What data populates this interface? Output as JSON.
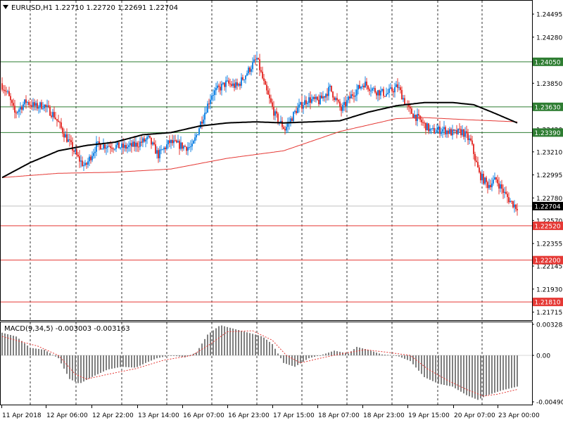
{
  "header": {
    "symbol": "EURUSD,H1",
    "ohlc": "1.22710 1.22720 1.22691 1.22704",
    "menu_icon": "triangle-down-icon"
  },
  "macd_header": {
    "label": "MACD(9,34,5) -0.003003 -0.003163"
  },
  "chart_data": [
    {
      "type": "candlestick",
      "title": "EURUSD,H1 1.22710 1.22720 1.22691 1.22704",
      "price_ticks": [
        "1.24495",
        "1.24280",
        "1.23850",
        "1.23635",
        "1.23420",
        "1.23210",
        "1.22995",
        "1.22780",
        "1.22570",
        "1.22355",
        "1.22145",
        "1.21930",
        "1.21715"
      ],
      "price_tick_values": [
        1.24495,
        1.2428,
        1.2385,
        1.23635,
        1.2342,
        1.2321,
        1.22995,
        1.2278,
        1.2257,
        1.22355,
        1.22145,
        1.2193,
        1.21715
      ],
      "ylim": [
        1.2164,
        1.2462
      ],
      "current_price": {
        "label": "1.22704",
        "value": 1.22704
      },
      "levels": [
        {
          "label": "1.24050",
          "value": 1.2405,
          "color": "#2e7d32"
        },
        {
          "label": "1.23630",
          "value": 1.2363,
          "color": "#2e7d32"
        },
        {
          "label": "1.23390",
          "value": 1.2339,
          "color": "#2e7d32"
        },
        {
          "label": "1.22520",
          "value": 1.2252,
          "color": "#e53935"
        },
        {
          "label": "1.22200",
          "value": 1.222,
          "color": "#e53935"
        },
        {
          "label": "1.21810",
          "value": 1.2181,
          "color": "#e53935"
        }
      ],
      "x_labels": [
        "11 Apr 2018",
        "12 Apr 06:00",
        "12 Apr 22:00",
        "13 Apr 14:00",
        "16 Apr 07:00",
        "16 Apr 23:00",
        "17 Apr 15:00",
        "18 Apr 07:00",
        "18 Apr 23:00",
        "19 Apr 15:00",
        "20 Apr 07:00",
        "23 Apr 00:00"
      ],
      "grid": "dashed vertical lines",
      "colors": {
        "bull": "#1e88e5",
        "bear": "#e53935",
        "ma_fast": "#000000",
        "ma_slow": "#e53935"
      },
      "price_anchors": [
        [
          0,
          1.2385
        ],
        [
          5,
          1.2375
        ],
        [
          10,
          1.2357
        ],
        [
          18,
          1.2368
        ],
        [
          25,
          1.2363
        ],
        [
          30,
          1.2365
        ],
        [
          38,
          1.2355
        ],
        [
          45,
          1.2338
        ],
        [
          55,
          1.2315
        ],
        [
          60,
          1.2307
        ],
        [
          68,
          1.2327
        ],
        [
          78,
          1.2327
        ],
        [
          88,
          1.2325
        ],
        [
          95,
          1.2327
        ],
        [
          105,
          1.2333
        ],
        [
          112,
          1.2318
        ],
        [
          120,
          1.233
        ],
        [
          130,
          1.2326
        ],
        [
          136,
          1.2325
        ],
        [
          142,
          1.2348
        ],
        [
          150,
          1.2375
        ],
        [
          160,
          1.2385
        ],
        [
          168,
          1.2382
        ],
        [
          175,
          1.2395
        ],
        [
          182,
          1.2408
        ],
        [
          188,
          1.238
        ],
        [
          195,
          1.2355
        ],
        [
          202,
          1.2342
        ],
        [
          210,
          1.236
        ],
        [
          218,
          1.237
        ],
        [
          226,
          1.2368
        ],
        [
          234,
          1.238
        ],
        [
          242,
          1.236
        ],
        [
          250,
          1.2375
        ],
        [
          258,
          1.2385
        ],
        [
          266,
          1.2378
        ],
        [
          274,
          1.2375
        ],
        [
          282,
          1.2382
        ],
        [
          290,
          1.236
        ],
        [
          298,
          1.235
        ],
        [
          306,
          1.234
        ],
        [
          314,
          1.2342
        ],
        [
          322,
          1.2338
        ],
        [
          328,
          1.234
        ],
        [
          334,
          1.233
        ],
        [
          340,
          1.23
        ],
        [
          346,
          1.229
        ],
        [
          352,
          1.2295
        ],
        [
          358,
          1.2282
        ],
        [
          362,
          1.2275
        ],
        [
          366,
          1.227
        ]
      ],
      "ma_fast_anchors": [
        [
          0,
          1.2297
        ],
        [
          20,
          1.2311
        ],
        [
          40,
          1.2322
        ],
        [
          60,
          1.2327
        ],
        [
          80,
          1.233
        ],
        [
          100,
          1.2337
        ],
        [
          120,
          1.2339
        ],
        [
          140,
          1.2345
        ],
        [
          160,
          1.2348
        ],
        [
          180,
          1.2349
        ],
        [
          200,
          1.2348
        ],
        [
          220,
          1.2349
        ],
        [
          240,
          1.235
        ],
        [
          260,
          1.2358
        ],
        [
          280,
          1.2364
        ],
        [
          300,
          1.2367
        ],
        [
          320,
          1.2367
        ],
        [
          335,
          1.2365
        ],
        [
          350,
          1.2357
        ],
        [
          366,
          1.2348
        ]
      ],
      "ma_slow_anchors": [
        [
          0,
          1.2297
        ],
        [
          40,
          1.2301
        ],
        [
          80,
          1.2302
        ],
        [
          120,
          1.2305
        ],
        [
          160,
          1.2315
        ],
        [
          200,
          1.2322
        ],
        [
          240,
          1.234
        ],
        [
          280,
          1.2352
        ],
        [
          300,
          1.2353
        ],
        [
          330,
          1.2351
        ],
        [
          366,
          1.2349
        ]
      ]
    },
    {
      "type": "bar",
      "title": "MACD(9,34,5) -0.003003 -0.003163",
      "y_ticks": [
        "0.003284",
        "0.00",
        "-0.004907"
      ],
      "y_tick_values": [
        0.003284,
        0,
        -0.004907
      ],
      "ylim": [
        -0.0052,
        0.0035
      ],
      "macd_anchors": [
        [
          0,
          0.0024
        ],
        [
          10,
          0.002
        ],
        [
          20,
          0.0008
        ],
        [
          30,
          0.0006
        ],
        [
          40,
          -0.0003
        ],
        [
          48,
          -0.0025
        ],
        [
          55,
          -0.003
        ],
        [
          65,
          -0.0022
        ],
        [
          75,
          -0.0015
        ],
        [
          85,
          -0.0012
        ],
        [
          95,
          -0.0013
        ],
        [
          102,
          -0.0008
        ],
        [
          110,
          -0.0003
        ],
        [
          120,
          0.0
        ],
        [
          130,
          -0.0002
        ],
        [
          138,
          0.0003
        ],
        [
          146,
          0.0022
        ],
        [
          155,
          0.0032
        ],
        [
          165,
          0.0028
        ],
        [
          175,
          0.0024
        ],
        [
          185,
          0.002
        ],
        [
          192,
          0.0012
        ],
        [
          200,
          -0.0008
        ],
        [
          208,
          -0.0012
        ],
        [
          218,
          -0.0003
        ],
        [
          226,
          0.0
        ],
        [
          236,
          0.0005
        ],
        [
          246,
          0.0002
        ],
        [
          252,
          0.0009
        ],
        [
          260,
          0.0006
        ],
        [
          270,
          0.0001
        ],
        [
          280,
          0.0
        ],
        [
          290,
          -0.0006
        ],
        [
          300,
          -0.0023
        ],
        [
          310,
          -0.003
        ],
        [
          320,
          -0.0033
        ],
        [
          330,
          -0.0042
        ],
        [
          338,
          -0.0047
        ],
        [
          345,
          -0.0042
        ],
        [
          355,
          -0.0037
        ],
        [
          366,
          -0.0033
        ]
      ],
      "signal_anchors": [
        [
          0,
          0.002
        ],
        [
          12,
          0.0015
        ],
        [
          25,
          0.001
        ],
        [
          40,
          0.0
        ],
        [
          52,
          -0.002
        ],
        [
          60,
          -0.0025
        ],
        [
          75,
          -0.002
        ],
        [
          95,
          -0.0014
        ],
        [
          115,
          -0.0005
        ],
        [
          135,
          0.0
        ],
        [
          148,
          0.0012
        ],
        [
          160,
          0.0025
        ],
        [
          178,
          0.0026
        ],
        [
          192,
          0.0016
        ],
        [
          202,
          0.0
        ],
        [
          212,
          -0.0008
        ],
        [
          226,
          -0.0003
        ],
        [
          242,
          0.0002
        ],
        [
          258,
          0.0006
        ],
        [
          275,
          0.0003
        ],
        [
          290,
          0.0
        ],
        [
          302,
          -0.0014
        ],
        [
          316,
          -0.0026
        ],
        [
          330,
          -0.0036
        ],
        [
          342,
          -0.0043
        ],
        [
          352,
          -0.0041
        ],
        [
          366,
          -0.0036
        ]
      ],
      "colors": {
        "histogram": "#808080",
        "signal": "#e53935"
      }
    }
  ]
}
